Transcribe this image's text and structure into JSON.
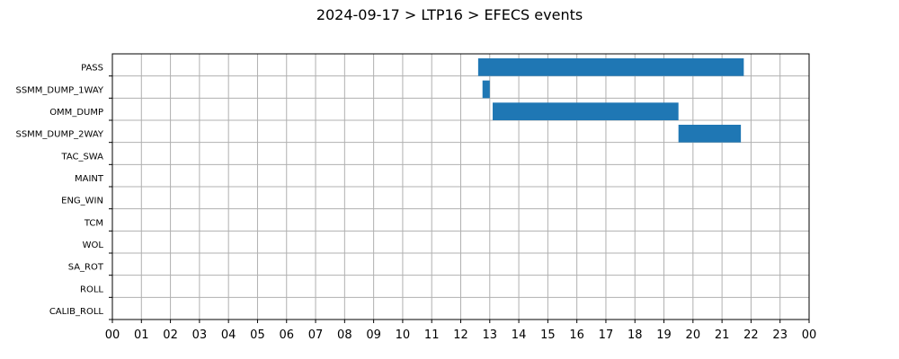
{
  "chart_data": {
    "type": "gantt",
    "title": "2024-09-17 > LTP16 > EFECS events",
    "categories": [
      "PASS",
      "SSMM_DUMP_1WAY",
      "OMM_DUMP",
      "SSMM_DUMP_2WAY",
      "TAC_SWA",
      "MAINT",
      "ENG_WIN",
      "TCM",
      "WOL",
      "SA_ROT",
      "ROLL",
      "CALIB_ROLL"
    ],
    "x_ticks": [
      "00",
      "01",
      "02",
      "03",
      "04",
      "05",
      "06",
      "07",
      "08",
      "09",
      "10",
      "11",
      "12",
      "13",
      "14",
      "15",
      "16",
      "17",
      "18",
      "19",
      "20",
      "21",
      "22",
      "23",
      "00"
    ],
    "xlim": [
      0,
      24
    ],
    "grid": true,
    "bar_color": "#1f77b4",
    "events": [
      {
        "category": "PASS",
        "start": 12.6,
        "end": 21.75
      },
      {
        "category": "SSMM_DUMP_1WAY",
        "start": 12.75,
        "end": 13.0
      },
      {
        "category": "OMM_DUMP",
        "start": 13.1,
        "end": 19.5
      },
      {
        "category": "SSMM_DUMP_2WAY",
        "start": 19.5,
        "end": 21.65
      }
    ]
  }
}
